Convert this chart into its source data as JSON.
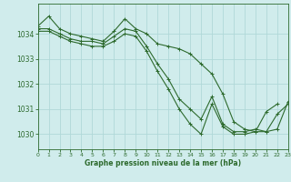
{
  "title": "Graphe pression niveau de la mer (hPa)",
  "bg_color": "#d0ecec",
  "grid_color": "#b0d8d8",
  "line_color": "#2d6a2d",
  "xlim": [
    0,
    23
  ],
  "ylim": [
    1029.4,
    1035.2
  ],
  "yticks": [
    1030,
    1031,
    1032,
    1033,
    1034
  ],
  "xticks": [
    0,
    1,
    2,
    3,
    4,
    5,
    6,
    7,
    8,
    9,
    10,
    11,
    12,
    13,
    14,
    15,
    16,
    17,
    18,
    19,
    20,
    21,
    22,
    23
  ],
  "series": [
    {
      "x": [
        0,
        1,
        2,
        3,
        4,
        5,
        6,
        7,
        8,
        9,
        10,
        11,
        12,
        13,
        14,
        15,
        16,
        17,
        18,
        19,
        20,
        21,
        22,
        23
      ],
      "y": [
        1034.3,
        1034.7,
        1034.2,
        1034.0,
        1033.9,
        1033.8,
        1033.7,
        1034.1,
        1034.6,
        1034.2,
        1034.0,
        1033.6,
        1033.5,
        1033.4,
        1033.2,
        1032.8,
        1032.4,
        1031.6,
        1030.5,
        1030.2,
        1030.1,
        1030.1,
        1030.2,
        1031.3
      ]
    },
    {
      "x": [
        0,
        1,
        2,
        3,
        4,
        5,
        6,
        7,
        8,
        9,
        10,
        11,
        12,
        13,
        14,
        15,
        16,
        17,
        18,
        19,
        20,
        21,
        22,
        23
      ],
      "y": [
        1034.2,
        1034.2,
        1034.0,
        1033.8,
        1033.7,
        1033.7,
        1033.6,
        1033.9,
        1034.2,
        1034.1,
        1033.5,
        1032.8,
        1032.2,
        1031.4,
        1031.0,
        1030.6,
        1031.5,
        1030.4,
        1030.1,
        1030.1,
        1030.2,
        1030.1,
        1030.8,
        1031.2
      ]
    },
    {
      "x": [
        0,
        1,
        2,
        3,
        4,
        5,
        6,
        7,
        8,
        9,
        10,
        11,
        12,
        13,
        14,
        15,
        16,
        17,
        18,
        19,
        20,
        21,
        22
      ],
      "y": [
        1034.1,
        1034.1,
        1033.9,
        1033.7,
        1033.6,
        1033.5,
        1033.5,
        1033.7,
        1034.0,
        1033.9,
        1033.3,
        1032.5,
        1031.8,
        1031.0,
        1030.4,
        1030.0,
        1031.2,
        1030.3,
        1030.0,
        1030.0,
        1030.1,
        1030.9,
        1031.2
      ]
    }
  ]
}
